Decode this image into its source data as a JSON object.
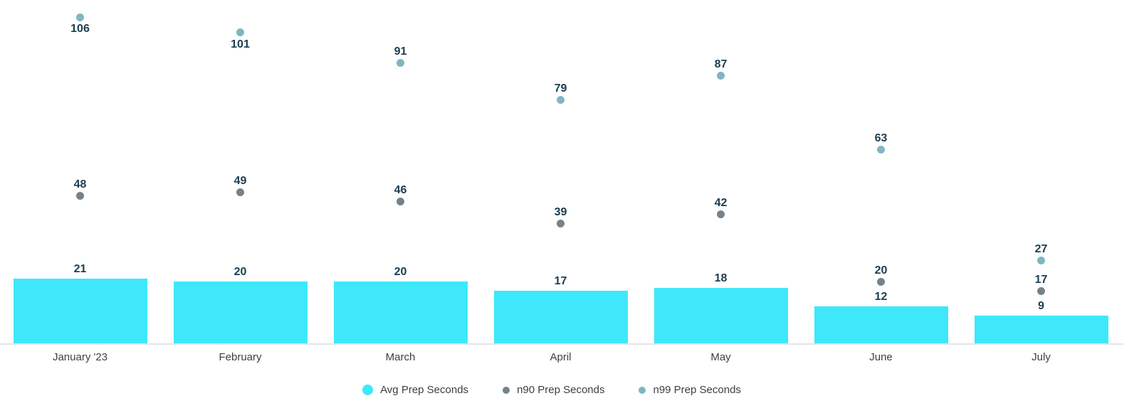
{
  "chart_data": {
    "type": "bar",
    "subtype": "combo bar + scatter with value annotations",
    "categories": [
      "January '23",
      "February",
      "March",
      "April",
      "May",
      "June",
      "July"
    ],
    "series": [
      {
        "name": "Avg Prep Seconds",
        "render": "bar",
        "color": "#3ee8fa",
        "values": [
          21,
          20,
          20,
          17,
          18,
          12,
          9
        ]
      },
      {
        "name": "n90 Prep Seconds",
        "render": "scatter",
        "color": "#75828b",
        "values": [
          48,
          49,
          46,
          39,
          42,
          20,
          17
        ]
      },
      {
        "name": "n99 Prep Seconds",
        "render": "scatter",
        "color": "#7fb6c2",
        "values": [
          106,
          101,
          91,
          79,
          87,
          63,
          27
        ]
      }
    ],
    "title": "",
    "xlabel": "",
    "ylabel": "",
    "ylim": [
      0,
      112
    ],
    "grid": false,
    "y_axis_visible": false,
    "legend_position": "bottom-center",
    "annotations": "every bar and dot is labeled with its numeric value"
  },
  "legend": {
    "items": [
      {
        "label": "Avg Prep Seconds",
        "color": "#3ee8fa"
      },
      {
        "label": "n90 Prep Seconds",
        "color": "#75828b"
      },
      {
        "label": "n99 Prep Seconds",
        "color": "#7fb6c2"
      }
    ]
  },
  "colors": {
    "background": "#ffffff",
    "bar": "#3ee8fa",
    "n90_dot": "#75828b",
    "n99_dot": "#7fb6c2",
    "value_label": "#1c3d50",
    "axis_line": "#e1e4ea",
    "month_label": "#3c4043"
  }
}
